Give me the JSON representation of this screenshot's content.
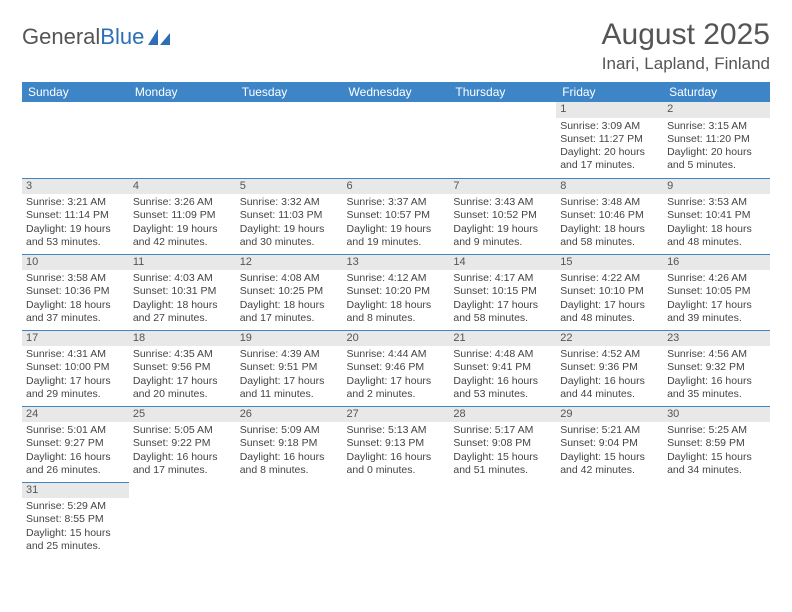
{
  "logo": {
    "text1": "General",
    "text2": "Blue"
  },
  "title": "August 2025",
  "location": "Inari, Lapland, Finland",
  "colors": {
    "header_bg": "#3d85c6",
    "header_text": "#ffffff",
    "rule": "#3d85c6",
    "daynum_bg": "#e8e8e8",
    "body_text": "#444444",
    "title_text": "#555555"
  },
  "weekdays": [
    "Sunday",
    "Monday",
    "Tuesday",
    "Wednesday",
    "Thursday",
    "Friday",
    "Saturday"
  ],
  "weeks": [
    [
      null,
      null,
      null,
      null,
      null,
      {
        "n": "1",
        "sr": "Sunrise: 3:09 AM",
        "ss": "Sunset: 11:27 PM",
        "dl": "Daylight: 20 hours and 17 minutes."
      },
      {
        "n": "2",
        "sr": "Sunrise: 3:15 AM",
        "ss": "Sunset: 11:20 PM",
        "dl": "Daylight: 20 hours and 5 minutes."
      }
    ],
    [
      {
        "n": "3",
        "sr": "Sunrise: 3:21 AM",
        "ss": "Sunset: 11:14 PM",
        "dl": "Daylight: 19 hours and 53 minutes."
      },
      {
        "n": "4",
        "sr": "Sunrise: 3:26 AM",
        "ss": "Sunset: 11:09 PM",
        "dl": "Daylight: 19 hours and 42 minutes."
      },
      {
        "n": "5",
        "sr": "Sunrise: 3:32 AM",
        "ss": "Sunset: 11:03 PM",
        "dl": "Daylight: 19 hours and 30 minutes."
      },
      {
        "n": "6",
        "sr": "Sunrise: 3:37 AM",
        "ss": "Sunset: 10:57 PM",
        "dl": "Daylight: 19 hours and 19 minutes."
      },
      {
        "n": "7",
        "sr": "Sunrise: 3:43 AM",
        "ss": "Sunset: 10:52 PM",
        "dl": "Daylight: 19 hours and 9 minutes."
      },
      {
        "n": "8",
        "sr": "Sunrise: 3:48 AM",
        "ss": "Sunset: 10:46 PM",
        "dl": "Daylight: 18 hours and 58 minutes."
      },
      {
        "n": "9",
        "sr": "Sunrise: 3:53 AM",
        "ss": "Sunset: 10:41 PM",
        "dl": "Daylight: 18 hours and 48 minutes."
      }
    ],
    [
      {
        "n": "10",
        "sr": "Sunrise: 3:58 AM",
        "ss": "Sunset: 10:36 PM",
        "dl": "Daylight: 18 hours and 37 minutes."
      },
      {
        "n": "11",
        "sr": "Sunrise: 4:03 AM",
        "ss": "Sunset: 10:31 PM",
        "dl": "Daylight: 18 hours and 27 minutes."
      },
      {
        "n": "12",
        "sr": "Sunrise: 4:08 AM",
        "ss": "Sunset: 10:25 PM",
        "dl": "Daylight: 18 hours and 17 minutes."
      },
      {
        "n": "13",
        "sr": "Sunrise: 4:12 AM",
        "ss": "Sunset: 10:20 PM",
        "dl": "Daylight: 18 hours and 8 minutes."
      },
      {
        "n": "14",
        "sr": "Sunrise: 4:17 AM",
        "ss": "Sunset: 10:15 PM",
        "dl": "Daylight: 17 hours and 58 minutes."
      },
      {
        "n": "15",
        "sr": "Sunrise: 4:22 AM",
        "ss": "Sunset: 10:10 PM",
        "dl": "Daylight: 17 hours and 48 minutes."
      },
      {
        "n": "16",
        "sr": "Sunrise: 4:26 AM",
        "ss": "Sunset: 10:05 PM",
        "dl": "Daylight: 17 hours and 39 minutes."
      }
    ],
    [
      {
        "n": "17",
        "sr": "Sunrise: 4:31 AM",
        "ss": "Sunset: 10:00 PM",
        "dl": "Daylight: 17 hours and 29 minutes."
      },
      {
        "n": "18",
        "sr": "Sunrise: 4:35 AM",
        "ss": "Sunset: 9:56 PM",
        "dl": "Daylight: 17 hours and 20 minutes."
      },
      {
        "n": "19",
        "sr": "Sunrise: 4:39 AM",
        "ss": "Sunset: 9:51 PM",
        "dl": "Daylight: 17 hours and 11 minutes."
      },
      {
        "n": "20",
        "sr": "Sunrise: 4:44 AM",
        "ss": "Sunset: 9:46 PM",
        "dl": "Daylight: 17 hours and 2 minutes."
      },
      {
        "n": "21",
        "sr": "Sunrise: 4:48 AM",
        "ss": "Sunset: 9:41 PM",
        "dl": "Daylight: 16 hours and 53 minutes."
      },
      {
        "n": "22",
        "sr": "Sunrise: 4:52 AM",
        "ss": "Sunset: 9:36 PM",
        "dl": "Daylight: 16 hours and 44 minutes."
      },
      {
        "n": "23",
        "sr": "Sunrise: 4:56 AM",
        "ss": "Sunset: 9:32 PM",
        "dl": "Daylight: 16 hours and 35 minutes."
      }
    ],
    [
      {
        "n": "24",
        "sr": "Sunrise: 5:01 AM",
        "ss": "Sunset: 9:27 PM",
        "dl": "Daylight: 16 hours and 26 minutes."
      },
      {
        "n": "25",
        "sr": "Sunrise: 5:05 AM",
        "ss": "Sunset: 9:22 PM",
        "dl": "Daylight: 16 hours and 17 minutes."
      },
      {
        "n": "26",
        "sr": "Sunrise: 5:09 AM",
        "ss": "Sunset: 9:18 PM",
        "dl": "Daylight: 16 hours and 8 minutes."
      },
      {
        "n": "27",
        "sr": "Sunrise: 5:13 AM",
        "ss": "Sunset: 9:13 PM",
        "dl": "Daylight: 16 hours and 0 minutes."
      },
      {
        "n": "28",
        "sr": "Sunrise: 5:17 AM",
        "ss": "Sunset: 9:08 PM",
        "dl": "Daylight: 15 hours and 51 minutes."
      },
      {
        "n": "29",
        "sr": "Sunrise: 5:21 AM",
        "ss": "Sunset: 9:04 PM",
        "dl": "Daylight: 15 hours and 42 minutes."
      },
      {
        "n": "30",
        "sr": "Sunrise: 5:25 AM",
        "ss": "Sunset: 8:59 PM",
        "dl": "Daylight: 15 hours and 34 minutes."
      }
    ],
    [
      {
        "n": "31",
        "sr": "Sunrise: 5:29 AM",
        "ss": "Sunset: 8:55 PM",
        "dl": "Daylight: 15 hours and 25 minutes."
      },
      null,
      null,
      null,
      null,
      null,
      null
    ]
  ]
}
